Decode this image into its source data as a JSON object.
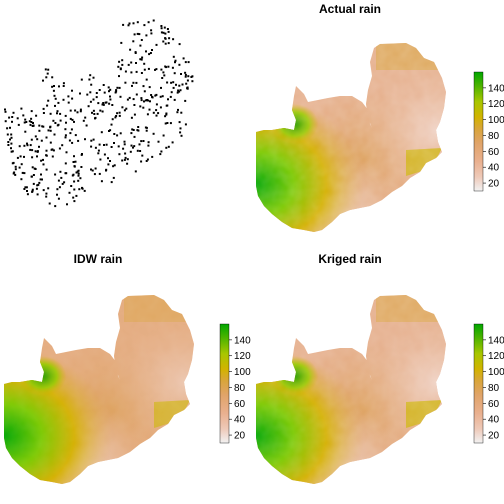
{
  "figure": {
    "panels": [
      "",
      "Actual rain",
      "IDW rain",
      "Kriged rain"
    ]
  },
  "chart_data": [
    {
      "type": "scatter",
      "title": "",
      "description_points": "Sample point locations (approx. 500 points) covering the country outline",
      "point_color": "#000000"
    },
    {
      "type": "heatmap",
      "title": "Actual rain",
      "legend_ticks": [
        20,
        40,
        60,
        80,
        100,
        120,
        140
      ],
      "value_range": [
        10,
        160
      ],
      "palette": [
        "#f2f2f2",
        "#eebea3",
        "#e3a56f",
        "#dca63f",
        "#d4b000",
        "#b9c700",
        "#7bc900",
        "#2a9b00",
        "#00a600"
      ]
    },
    {
      "type": "heatmap",
      "title": "IDW rain",
      "legend_ticks": [
        20,
        40,
        60,
        80,
        100,
        120,
        140
      ],
      "value_range": [
        10,
        160
      ],
      "palette": [
        "#f2f2f2",
        "#eebea3",
        "#e3a56f",
        "#dca63f",
        "#d4b000",
        "#b9c700",
        "#7bc900",
        "#2a9b00",
        "#00a600"
      ]
    },
    {
      "type": "heatmap",
      "title": "Kriged rain",
      "legend_ticks": [
        20,
        40,
        60,
        80,
        100,
        120,
        140
      ],
      "value_range": [
        10,
        160
      ],
      "palette": [
        "#f2f2f2",
        "#eebea3",
        "#e3a56f",
        "#dca63f",
        "#d4b000",
        "#b9c700",
        "#7bc900",
        "#2a9b00",
        "#00a600"
      ]
    }
  ]
}
